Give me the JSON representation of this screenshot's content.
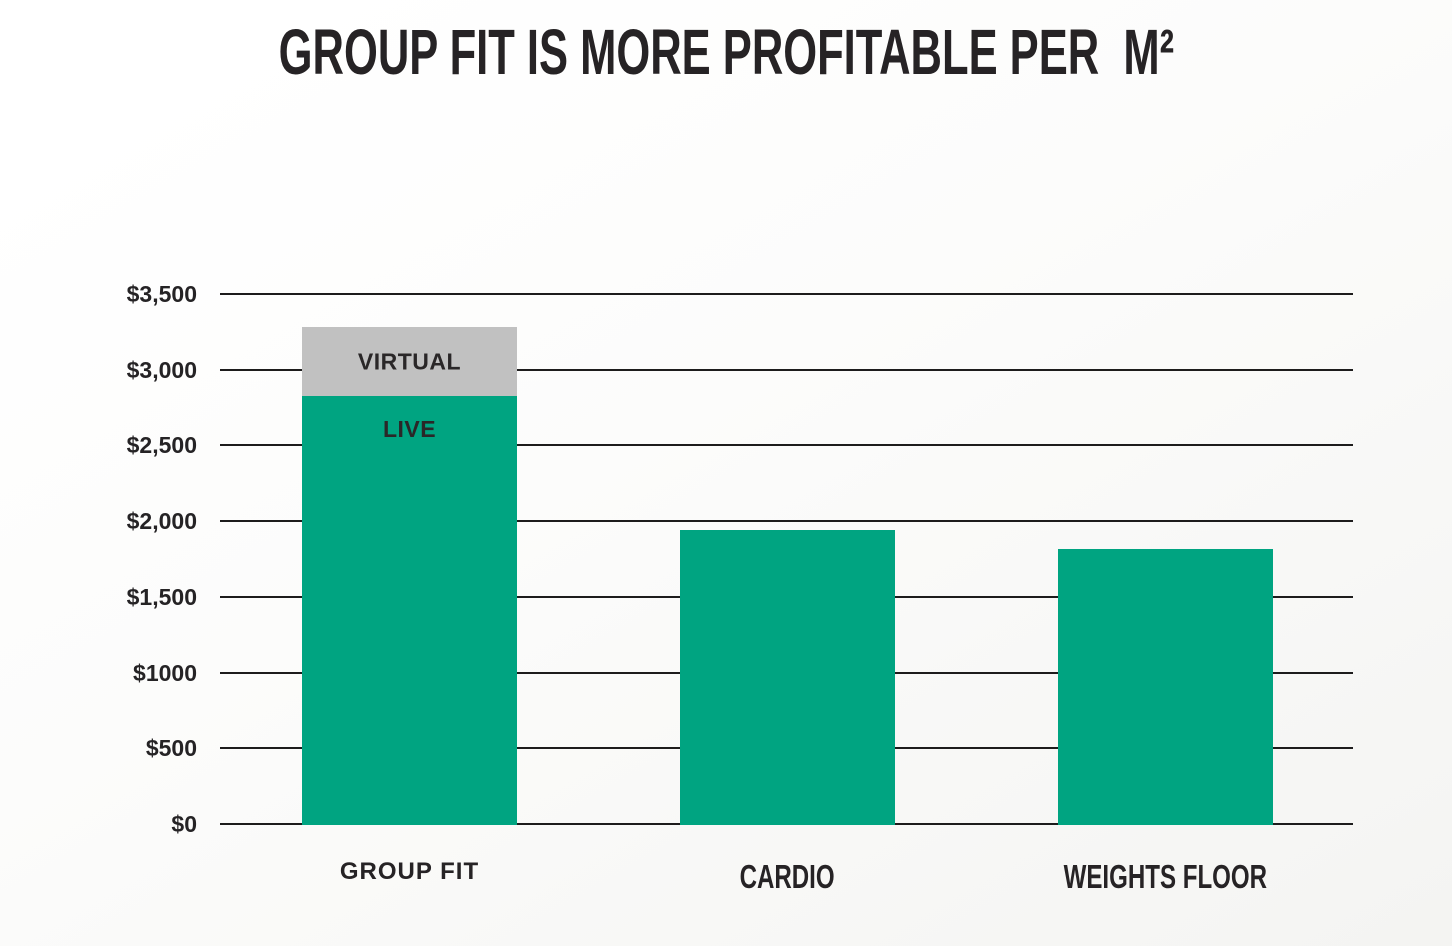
{
  "title": {
    "text": "GROUP FIT IS MORE PROFITABLE PER  M²"
  },
  "colors": {
    "bar_green": "#00a481",
    "bar_gray": "#c1c1c1",
    "grid_line": "#1d1c1c",
    "text": "#262325",
    "background_start": "#ffffff",
    "background_end": "#f4f4f2"
  },
  "chart_data": {
    "type": "bar",
    "stacked": true,
    "title": "GROUP FIT IS MORE PROFITABLE PER M²",
    "categories": [
      "GROUP FIT",
      "CARDIO",
      "WEIGHTS FLOOR"
    ],
    "series": [
      {
        "name": "LIVE",
        "color": "#00a481",
        "values": [
          2830,
          1950,
          1820
        ]
      },
      {
        "name": "VIRTUAL",
        "color": "#c1c1c1",
        "values": [
          460,
          0,
          0
        ]
      }
    ],
    "totals": [
      3290,
      1950,
      1820
    ],
    "ylim": [
      0,
      3500
    ],
    "ytick_interval": 500,
    "yticks": [
      {
        "value": 3500,
        "label": "$3,500"
      },
      {
        "value": 3000,
        "label": "$3,000"
      },
      {
        "value": 2500,
        "label": "$2,500"
      },
      {
        "value": 2000,
        "label": "$2,000"
      },
      {
        "value": 1500,
        "label": "$1,500"
      },
      {
        "value": 1000,
        "label": "$1000"
      },
      {
        "value": 500,
        "label": "$500"
      },
      {
        "value": 0,
        "label": "$0"
      }
    ],
    "grid": true,
    "xlabel": "",
    "ylabel": "",
    "legend_position": "labels-inside-first-bar",
    "segment_labels": [
      {
        "series": "VIRTUAL",
        "text": "VIRTUAL",
        "placement": "centered"
      },
      {
        "series": "LIVE",
        "text": "LIVE",
        "placement": "near-top"
      }
    ],
    "category_label_styles": [
      "wide",
      "condensed",
      "condensed"
    ]
  }
}
